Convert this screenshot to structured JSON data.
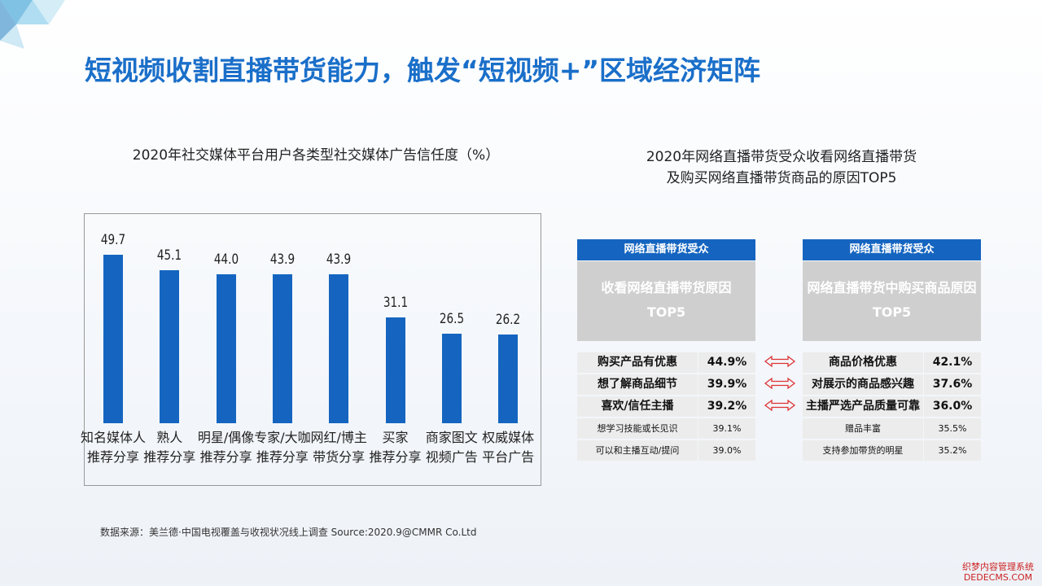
{
  "title": "短视频收割直播带货能力，触发“短视频+”区域经济矩阵",
  "chart_data": {
    "type": "bar",
    "title": "2020年社交媒体平台用户各类型社交媒体广告信任度（%）",
    "categories": [
      "知名媒体人\n推荐分享",
      "熟人\n推荐分享",
      "明星/偶像\n推荐分享",
      "专家/大咖\n推荐分享",
      "网红/博主\n带货分享",
      "买家\n推荐分享",
      "商家图文\n视频广告",
      "权威媒体\n平台广告"
    ],
    "values": [
      49.7,
      45.1,
      44.0,
      43.9,
      43.9,
      31.1,
      26.5,
      26.2
    ],
    "value_labels": [
      "49.7",
      "45.1",
      "44.0",
      "43.9",
      "43.9",
      "31.1",
      "26.5",
      "26.2"
    ],
    "color": "#1565c0",
    "ylim": [
      0,
      60
    ]
  },
  "reasons": {
    "title": "2020年网络直播带货受众收看网络直播带货\n及购买网络直播带货商品的原因TOP5",
    "tables": [
      {
        "header": "网络直播带货受众",
        "subheader": "收看网络直播带货原因\nTOP5",
        "rows": [
          [
            "购买产品有优惠",
            "44.9%"
          ],
          [
            "想了解商品细节",
            "39.9%"
          ],
          [
            "喜欢/信任主播",
            "39.2%"
          ],
          [
            "想学习技能或长见识",
            "39.1%"
          ],
          [
            "可以和主播互动/提问",
            "39.0%"
          ]
        ]
      },
      {
        "header": "网络直播带货受众",
        "subheader": "网络直播带货中购买商品原因\nTOP5",
        "rows": [
          [
            "商品价格优惠",
            "42.1%"
          ],
          [
            "对展示的商品感兴趣",
            "37.6%"
          ],
          [
            "主播严选产品质量可靠",
            "36.0%"
          ],
          [
            "赠品丰富",
            "35.5%"
          ],
          [
            "支持参加带货的明星",
            "35.2%"
          ]
        ]
      }
    ]
  },
  "source": "数据来源：美兰德·中国电视覆盖与收视状况线上调查 Source:2020.9@CMMR Co.Ltd",
  "watermark": {
    "line1": "织梦内容管理系统",
    "line2": "DEDECMS.COM"
  }
}
